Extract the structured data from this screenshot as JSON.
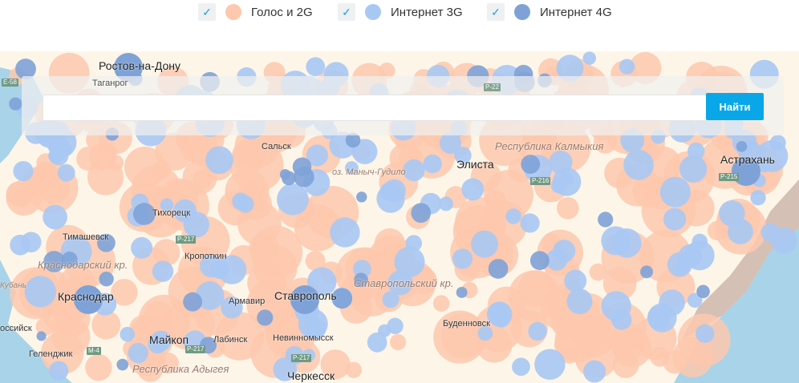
{
  "legend": [
    {
      "label": "Голос и 2G",
      "checked": true,
      "color": "#fdc8ae"
    },
    {
      "label": "Интернет 3G",
      "checked": true,
      "color": "#a8c8f4"
    },
    {
      "label": "Интернет 4G",
      "checked": true,
      "color": "#7ea2d8"
    }
  ],
  "search": {
    "value": "",
    "button_label": "Найти"
  },
  "map": {
    "cities": {
      "rostov": "Ростов-на-Дону",
      "taganrog": "Таганрог",
      "salsk": "Сальск",
      "manych": "оз. Маныч-Гудило",
      "elista": "Элиста",
      "astrakhan": "Астрахань",
      "tikhoretsk": "Тихорецк",
      "timashevsk": "Тимашевск",
      "kropotkin": "Кропоткин",
      "kuban": "Кубань",
      "krasnodar": "Краснодар",
      "armavir": "Армавир",
      "stavropol": "Ставрополь",
      "maykop": "Майкоп",
      "labinsk": "Лабинск",
      "nevinnomyssk": "Невинномысск",
      "budennovsk": "Буденновск",
      "gelendzhik": "Геленджик",
      "cherkessk": "Черкесск",
      "novoross": "оссийск"
    },
    "regions": {
      "kalmykia": "Республика Калмыкия",
      "krasnodar_kr": "Краснодарский кр.",
      "stavropol_kr": "Ставропольский кр.",
      "adygea": "Республика Адыгея"
    },
    "roads": {
      "e58": "E-58",
      "m4": "M-4",
      "p217a": "P-217",
      "p217b": "P-217",
      "p217c": "P-217",
      "p216": "P-216",
      "p22": "P-22",
      "p215": "P-215"
    },
    "colors": {
      "land": "#fdf6e8",
      "sea": "#a9d3e8",
      "voice2g": "#fdc8ae",
      "net3g": "#a8c8f4",
      "net4g": "#7ea2d8"
    }
  }
}
